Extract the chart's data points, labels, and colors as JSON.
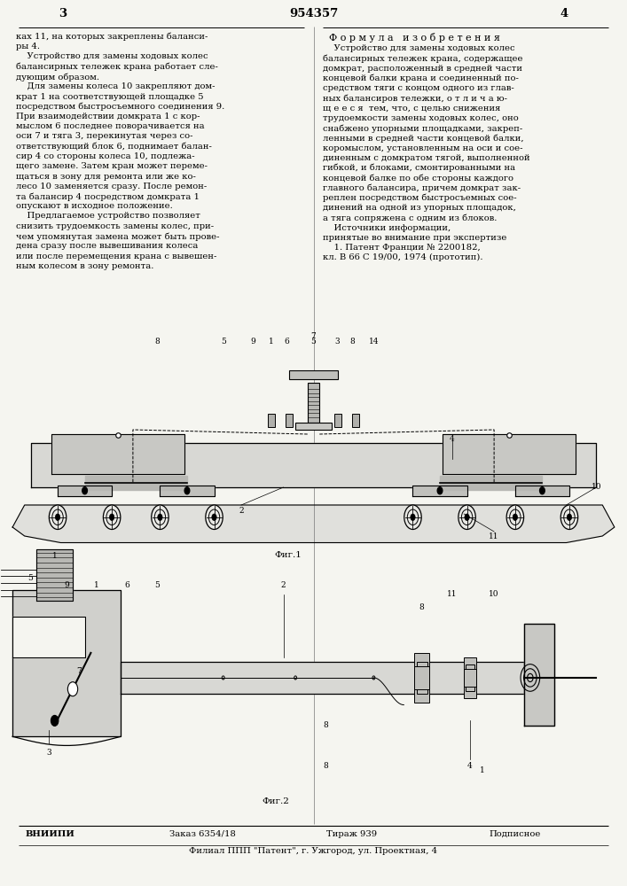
{
  "page_width": 7.07,
  "page_height": 10.0,
  "dpi": 100,
  "bg_color": "#f5f5f0",
  "page_number_left": "3",
  "page_number_center": "954357",
  "page_number_right": "4",
  "left_text_lines": [
    "ках 11, на которых закреплены баланси-",
    "ры 4.",
    "    Устройство для замены ходовых колес",
    "балансирных тележек крана работает сле-",
    "дующим образом.",
    "    Для замены колеса 10 закрепляют дом-",
    "крат 1 на соответствующей площадке 5",
    "посредством быстросъемного соединения 9.",
    "При взаимодействии домкрата 1 с кор-",
    "мыслом 6 последнее поворачивается на",
    "оси 7 и тяга 3, перекинутая через со-",
    "ответствующий блок 6, поднимает балан-",
    "сир 4 со стороны колеса 10, подлежа-",
    "щего замене. Затем кран может переме-",
    "щаться в зону для ремонта или же ко-",
    "лесо 10 заменяется сразу. После ремон-",
    "та балансир 4 посредством домкрата 1",
    "опускают в исходное положение.",
    "    Предлагаемое устройство позволяет",
    "снизить трудоемкость замены колес, при-",
    "чем упомянутая замена может быть прове-",
    "дена сразу после вывешивания колеса",
    "или после перемещения крана с вывешен-",
    "ным колесом в зону ремонта."
  ],
  "right_header": "Ф о р м у л а   и з о б р е т е н и я",
  "right_text_lines": [
    "    Устройство для замены ходовых колес",
    "балансирных тележек крана, содержащее",
    "домкрат, расположенный в средней части",
    "концевой балки крана и соединенный по-",
    "средством тяги с концом одного из глав-",
    "ных балансиров тележки, о т л и ч а ю-",
    "щ е е с я  тем, что, с целью снижения",
    "трудоемкости замены ходовых колес, оно",
    "снабжено упорными площадками, закреп-",
    "ленными в средней части концевой балки,",
    "коромыслом, установленным на оси и сое-",
    "диненным с домкратом тягой, выполненной",
    "гибкой, и блоками, смонтированными на",
    "концевой балке по обе стороны каждого",
    "главного балансира, причем домкрат зак-",
    "реплен посредством быстросъемных сое-",
    "динений на одной из упорных площадок,",
    "а тяга сопряжена с одним из блоков.",
    "    Источники информации,",
    "принятые во внимание при экспертизе",
    "    1. Патент Франции № 2200182,",
    "кл. В 66 С 19/00, 1974 (прототип)."
  ],
  "fig1_label": "Фиг.1",
  "fig2_label": "Фиг.2",
  "footer_vniiipi": "ВНИИПИ",
  "footer_order": "Заказ 6354/18",
  "footer_tirazh": "Тираж 939",
  "footer_podpisnoe": "Подписное",
  "footer_filial": "Филиал ППП \"Патент\", г. Ужгород, ул. Проектная, 4",
  "font_size_main": 7.2,
  "font_size_header": 8.0,
  "font_size_footer": 7.2,
  "font_size_page_num": 9.5,
  "font_size_label": 7.5
}
